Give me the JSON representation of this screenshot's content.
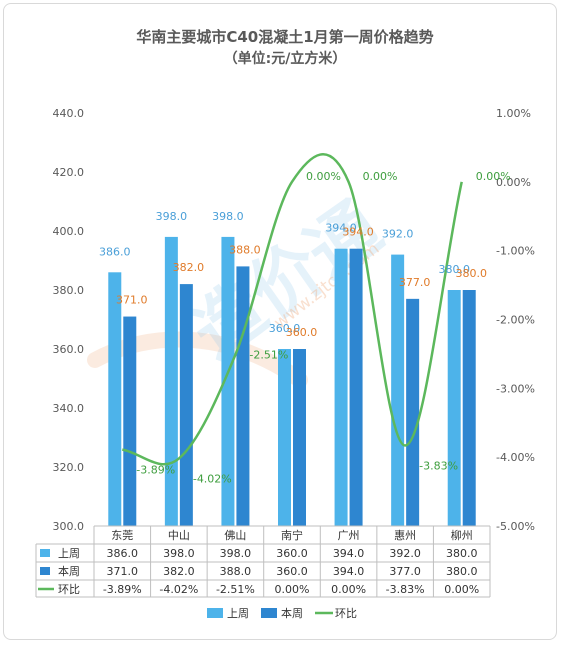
{
  "chart_data": {
    "type": "bar",
    "title": "华南主要城市C40混凝土1月第一周价格趋势",
    "subtitle": "（单位:元/立方米）",
    "categories": [
      "东莞",
      "中山",
      "佛山",
      "南宁",
      "广州",
      "惠州",
      "柳州"
    ],
    "series": [
      {
        "name": "上周",
        "type": "bar",
        "axis": "left",
        "color": "#4db3ea",
        "values": [
          386.0,
          398.0,
          398.0,
          360.0,
          394.0,
          392.0,
          380.0
        ],
        "labels": [
          "386.0",
          "398.0",
          "398.0",
          "360.0",
          "394.0",
          "392.0",
          "380.0"
        ]
      },
      {
        "name": "本周",
        "type": "bar",
        "axis": "left",
        "color": "#2e86d0",
        "values": [
          371.0,
          382.0,
          388.0,
          360.0,
          394.0,
          377.0,
          380.0
        ],
        "labels": [
          "371.0",
          "382.0",
          "388.0",
          "360.0",
          "394.0",
          "377.0",
          "380.0"
        ]
      },
      {
        "name": "环比",
        "type": "line",
        "axis": "right",
        "color": "#5cb85c",
        "values": [
          -3.89,
          -4.02,
          -2.51,
          0.0,
          0.0,
          -3.83,
          0.0
        ],
        "labels": [
          "-3.89%",
          "-4.02%",
          "-2.51%",
          "0.00%",
          "0.00%",
          "-3.83%",
          "0.00%"
        ]
      }
    ],
    "y_left": {
      "ylim": [
        300,
        440
      ],
      "ticks": [
        "300.0",
        "320.0",
        "340.0",
        "360.0",
        "380.0",
        "400.0",
        "420.0",
        "440.0"
      ]
    },
    "y_right": {
      "ylim": [
        -5.0,
        1.0
      ],
      "ticks": [
        "-5.00%",
        "-4.00%",
        "-3.00%",
        "-2.00%",
        "-1.00%",
        "0.00%",
        "1.00%"
      ]
    },
    "table": {
      "rows": [
        {
          "name": "上周",
          "cells": [
            "386.0",
            "398.0",
            "398.0",
            "360.0",
            "394.0",
            "392.0",
            "380.0"
          ]
        },
        {
          "name": "本周",
          "cells": [
            "371.0",
            "382.0",
            "388.0",
            "360.0",
            "394.0",
            "377.0",
            "380.0"
          ]
        },
        {
          "name": "环比",
          "cells": [
            "-3.89%",
            "-4.02%",
            "-2.51%",
            "0.00%",
            "0.00%",
            "-3.83%",
            "0.00%"
          ]
        }
      ]
    },
    "legend": {
      "position": "bottom",
      "items": [
        "上周",
        "本周",
        "环比"
      ]
    },
    "watermark": {
      "text": "www.zjtcn.com",
      "logo": "造价通"
    },
    "label_colors": {
      "上周": "#4a9fd8",
      "本周": "#e07b2a",
      "环比": "#3f9e3f"
    },
    "grid": false
  }
}
